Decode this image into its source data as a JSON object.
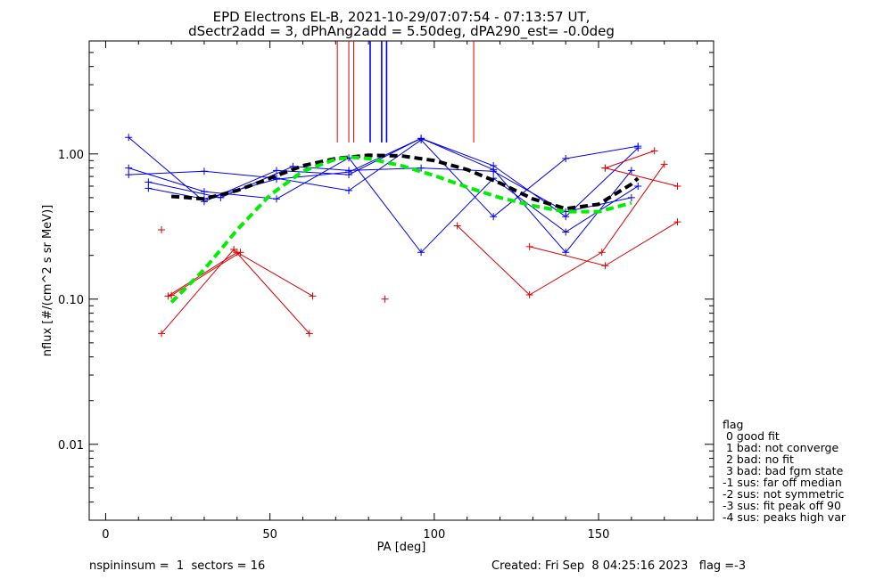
{
  "title_line1": "EPD Electrons EL-B, 2021-10-29/07:07:54 - 07:13:57 UT,",
  "title_line2": "dSectr2add = 3, dPhAng2add = 5.50deg, dPA290_est=  -0.0deg",
  "footer": {
    "left": "nspininsum =  1  sectors = 16",
    "right": "Created: Fri Sep  8 04:25:16 2023   flag =-3"
  },
  "legend": {
    "title": "flag",
    "items": [
      " 0 good fit",
      " 1 bad: not converge",
      " 2 bad: no fit",
      " 3 bad: bad fgm state",
      "-1 sus: far off median",
      "-2 sus: not symmetric",
      "-3 sus: fit peak off 90",
      "-4 sus: peaks high var"
    ]
  },
  "colors": {
    "blue": "#0000ee",
    "red": "#dd0000",
    "black": "#000000",
    "green": "#00ee00"
  },
  "chart_data": {
    "type": "line",
    "xlabel": "PA [deg]",
    "ylabel": "nflux [#/(cm^2 s sr MeV)]",
    "xlim": [
      -5,
      185
    ],
    "ylim": [
      0.003,
      6
    ],
    "yscale": "log",
    "x_ticks": [
      0,
      50,
      100,
      150
    ],
    "y_ticks": [
      0.01,
      0.1,
      1.0
    ],
    "y_tick_labels": [
      "0.01",
      "0.10",
      "1.00"
    ],
    "series": [
      {
        "color": "blue",
        "style": "line+plus",
        "points": [
          [
            7,
            1.3
          ],
          [
            30,
            0.47
          ],
          [
            52,
            0.77
          ],
          [
            74,
            0.72
          ],
          [
            96,
            1.28
          ],
          [
            118,
            0.83
          ],
          [
            140,
            0.37
          ],
          [
            162,
            1.1
          ]
        ]
      },
      {
        "color": "blue",
        "style": "line+plus",
        "points": [
          [
            7,
            0.8
          ],
          [
            30,
            0.55
          ],
          [
            52,
            0.49
          ],
          [
            74,
            0.94
          ],
          [
            96,
            0.21
          ],
          [
            118,
            0.68
          ],
          [
            140,
            0.29
          ],
          [
            162,
            0.6
          ]
        ]
      },
      {
        "color": "blue",
        "style": "line+plus",
        "points": [
          [
            7,
            0.72
          ],
          [
            30,
            0.76
          ],
          [
            52,
            0.68
          ],
          [
            74,
            0.56
          ],
          [
            96,
            1.25
          ],
          [
            118,
            0.37
          ],
          [
            140,
            0.93
          ],
          [
            162,
            1.13
          ]
        ]
      },
      {
        "color": "blue",
        "style": "line+plus",
        "points": [
          [
            13,
            0.64
          ],
          [
            35,
            0.5
          ],
          [
            57,
            0.82
          ],
          [
            74,
            0.77
          ],
          [
            96,
            0.8
          ],
          [
            118,
            0.76
          ],
          [
            140,
            0.4
          ],
          [
            160,
            0.5
          ]
        ]
      },
      {
        "color": "blue",
        "style": "line+plus",
        "points": [
          [
            13,
            0.58
          ],
          [
            30,
            0.49
          ],
          [
            52,
            0.67
          ],
          [
            74,
            0.75
          ],
          [
            96,
            1.28
          ],
          [
            118,
            0.78
          ],
          [
            140,
            0.21
          ],
          [
            160,
            0.77
          ]
        ]
      },
      {
        "color": "red",
        "style": "line+plus",
        "points": [
          [
            19,
            0.105
          ],
          [
            40,
            0.21
          ],
          [
            63,
            0.105
          ]
        ]
      },
      {
        "color": "red",
        "style": "line+plus",
        "points": [
          [
            17,
            0.058
          ],
          [
            39,
            0.22
          ],
          [
            62,
            0.058
          ]
        ]
      },
      {
        "color": "red",
        "style": "line+plus",
        "points": [
          [
            20,
            0.106
          ],
          [
            41,
            0.21
          ]
        ]
      },
      {
        "color": "red",
        "style": "line+plus",
        "points": [
          [
            107,
            0.32
          ],
          [
            129,
            0.107
          ],
          [
            151,
            0.21
          ],
          [
            170,
            0.85
          ]
        ]
      },
      {
        "color": "red",
        "style": "line+plus",
        "points": [
          [
            129,
            0.23
          ],
          [
            152,
            0.17
          ],
          [
            174,
            0.34
          ]
        ]
      },
      {
        "color": "red",
        "style": "line+plus",
        "points": [
          [
            152,
            0.8
          ],
          [
            167,
            1.05
          ]
        ]
      },
      {
        "color": "red",
        "style": "line+plus",
        "points": [
          [
            152,
            0.8
          ],
          [
            174,
            0.6
          ]
        ]
      },
      {
        "color": "red",
        "style": "plus",
        "points": [
          [
            17,
            0.3
          ],
          [
            85,
            0.1
          ]
        ]
      },
      {
        "color": "black",
        "style": "dashed-thick",
        "points": [
          [
            20,
            0.51
          ],
          [
            30,
            0.49
          ],
          [
            40,
            0.56
          ],
          [
            50,
            0.68
          ],
          [
            60,
            0.83
          ],
          [
            70,
            0.93
          ],
          [
            80,
            0.98
          ],
          [
            90,
            0.97
          ],
          [
            100,
            0.9
          ],
          [
            110,
            0.78
          ],
          [
            120,
            0.63
          ],
          [
            130,
            0.49
          ],
          [
            140,
            0.42
          ],
          [
            150,
            0.45
          ],
          [
            160,
            0.62
          ],
          [
            162,
            0.68
          ]
        ]
      },
      {
        "color": "green",
        "style": "dashed-thick",
        "points": [
          [
            20,
            0.095
          ],
          [
            30,
            0.16
          ],
          [
            40,
            0.3
          ],
          [
            50,
            0.52
          ],
          [
            60,
            0.76
          ],
          [
            70,
            0.92
          ],
          [
            75,
            0.95
          ],
          [
            80,
            0.93
          ],
          [
            90,
            0.83
          ],
          [
            100,
            0.71
          ],
          [
            110,
            0.59
          ],
          [
            120,
            0.5
          ],
          [
            130,
            0.44
          ],
          [
            140,
            0.4
          ],
          [
            150,
            0.4
          ],
          [
            160,
            0.46
          ]
        ]
      }
    ],
    "vertical_markers": [
      {
        "x": 70.5,
        "color": "red"
      },
      {
        "x": 74.0,
        "color": "red"
      },
      {
        "x": 75.5,
        "color": "red"
      },
      {
        "x": 80.5,
        "color": "blue"
      },
      {
        "x": 84.0,
        "color": "blue"
      },
      {
        "x": 85.5,
        "color": "blue"
      },
      {
        "x": 112.0,
        "color": "red"
      }
    ]
  }
}
